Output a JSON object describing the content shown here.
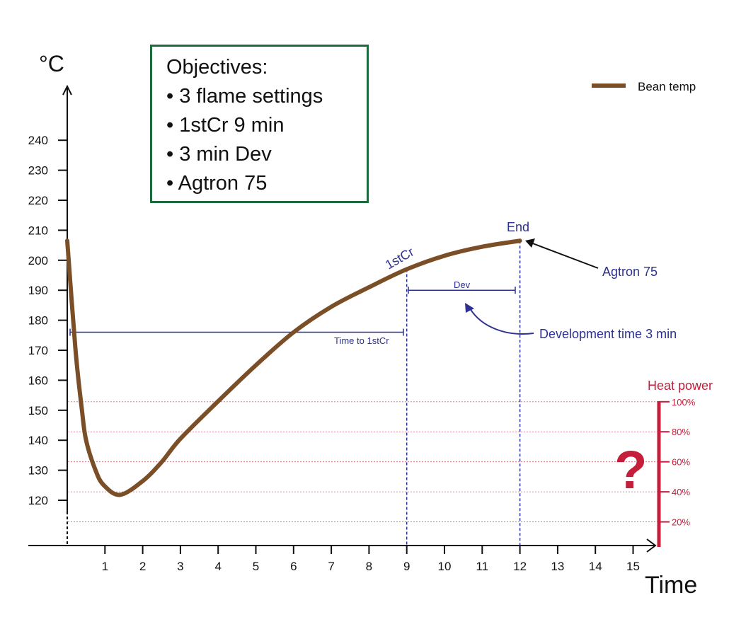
{
  "objectives": {
    "title": "Objectives:",
    "items": [
      "• 3 flame settings",
      "• 1stCr 9 min",
      "• 3 min Dev",
      "• Agtron 75"
    ]
  },
  "chart_data": {
    "type": "line",
    "ylabel": "°C",
    "xlabel": "Time",
    "xlim": [
      0,
      15
    ],
    "ylim": [
      120,
      240
    ],
    "x_ticks": [
      1,
      2,
      3,
      4,
      5,
      6,
      7,
      8,
      9,
      10,
      11,
      12,
      13,
      14,
      15
    ],
    "y_ticks": [
      120,
      130,
      140,
      150,
      160,
      170,
      180,
      190,
      200,
      210,
      220,
      230,
      240
    ],
    "grid": false,
    "legend_position": "top-right",
    "series": [
      {
        "name": "Bean temp",
        "color": "#7a4e26",
        "points": [
          [
            0,
            206.5
          ],
          [
            0.22,
            170
          ],
          [
            0.39,
            150
          ],
          [
            0.5,
            140
          ],
          [
            0.75,
            130
          ],
          [
            0.97,
            125
          ],
          [
            1.4,
            121.8
          ],
          [
            2,
            126.4
          ],
          [
            2.5,
            132.7
          ],
          [
            3,
            140.5
          ],
          [
            4,
            153
          ],
          [
            5,
            165
          ],
          [
            6,
            176
          ],
          [
            7,
            184.5
          ],
          [
            8,
            191
          ],
          [
            9,
            197
          ],
          [
            10,
            201.5
          ],
          [
            11,
            204.5
          ],
          [
            12,
            206.5
          ]
        ]
      }
    ],
    "annotations": {
      "color": "#2e3192",
      "first_crack_label": "1stCr",
      "first_crack_time": 9,
      "end_label": "End",
      "end_time": 12,
      "time_to_first_crack_label": "Time to 1stCr",
      "time_to_first_crack_level": 176,
      "dev_label": "Dev",
      "dev_level": 190,
      "development_note": "Development time 3 min",
      "agtron_note": "Agtron 75"
    },
    "heat_power": {
      "title": "Heat power",
      "color": "#c41e3a",
      "ticks": [
        "100%",
        "80%",
        "60%",
        "40%",
        "20%"
      ],
      "tick_values": [
        100,
        80,
        60,
        40,
        20
      ],
      "value_label": "?"
    }
  }
}
